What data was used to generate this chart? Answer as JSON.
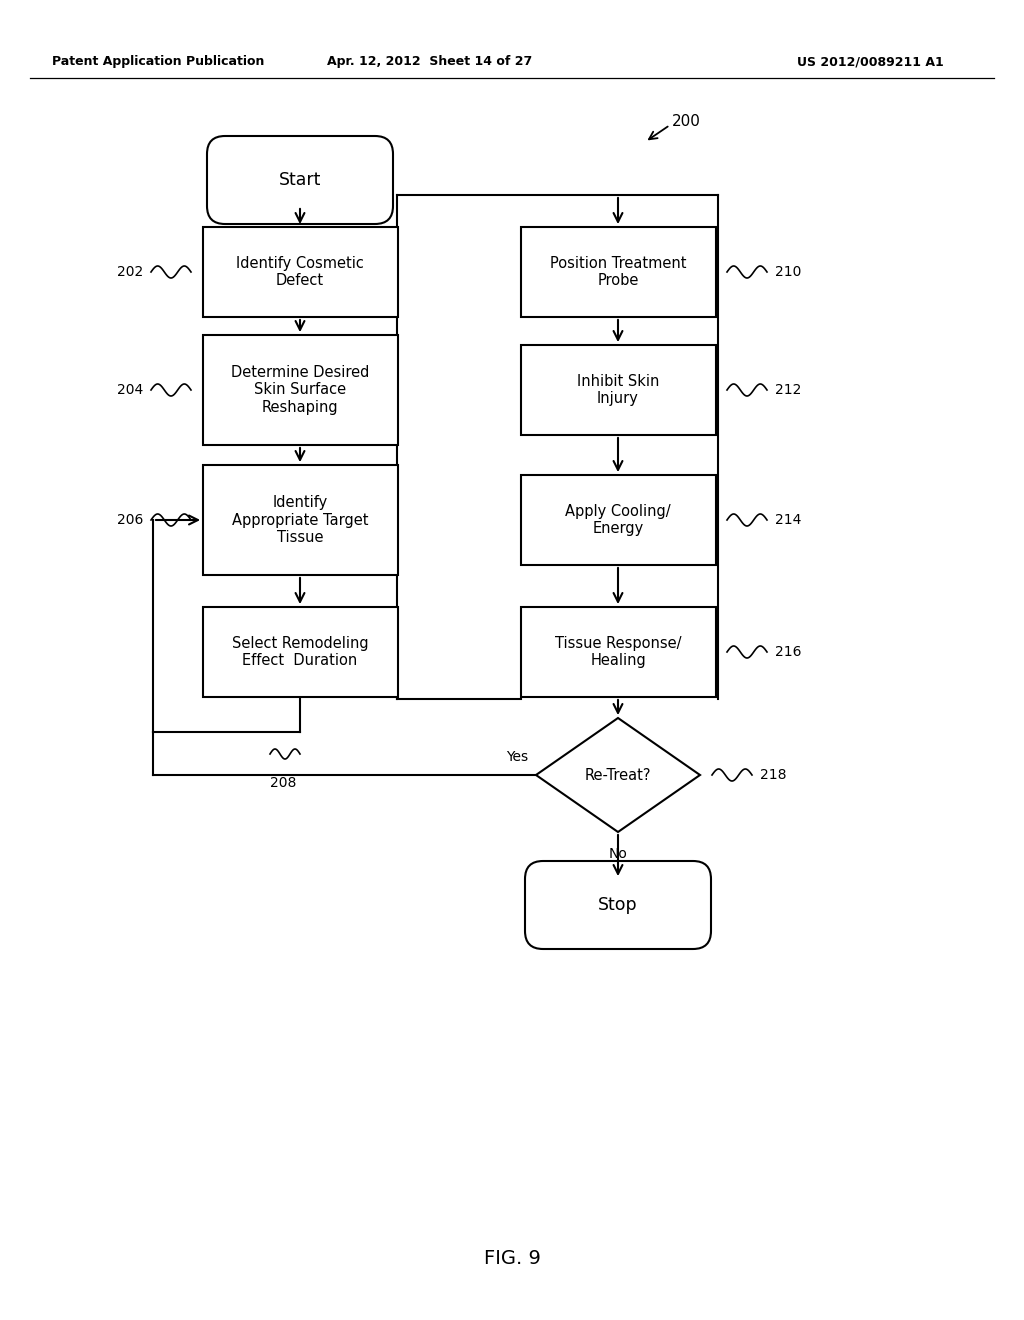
{
  "header_left": "Patent Application Publication",
  "header_mid": "Apr. 12, 2012  Sheet 14 of 27",
  "header_right": "US 2012/0089211 A1",
  "fig_label": "FIG. 9",
  "bg_color": "#ffffff"
}
